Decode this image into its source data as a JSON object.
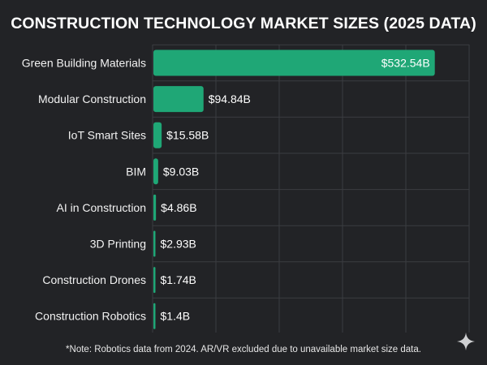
{
  "chart_data": {
    "type": "bar",
    "orientation": "horizontal",
    "title": "CONSTRUCTION TECHNOLOGY MARKET SIZES (2025 DATA)",
    "categories": [
      "Green Building Materials",
      "Modular Construction",
      "IoT Smart Sites",
      "BIM",
      "AI in Construction",
      "3D Printing",
      "Construction Drones",
      "Construction Robotics"
    ],
    "values": [
      532.54,
      94.84,
      15.58,
      9.03,
      4.86,
      2.93,
      1.74,
      1.4
    ],
    "data_labels": [
      "$532.54B",
      "$94.84B",
      "$15.58B",
      "$9.03B",
      "$4.86B",
      "$2.93B",
      "$1.74B",
      "$1.4B"
    ],
    "unit": "Billion USD",
    "xlim": [
      0,
      600
    ],
    "grid": true,
    "bar_color": "#1fa776",
    "xlabel": "",
    "ylabel": ""
  },
  "footnote": "*Note: Robotics data from 2024. AR/VR excluded due to unavailable market size data.",
  "icons": {
    "corner": "sparkle-icon"
  }
}
